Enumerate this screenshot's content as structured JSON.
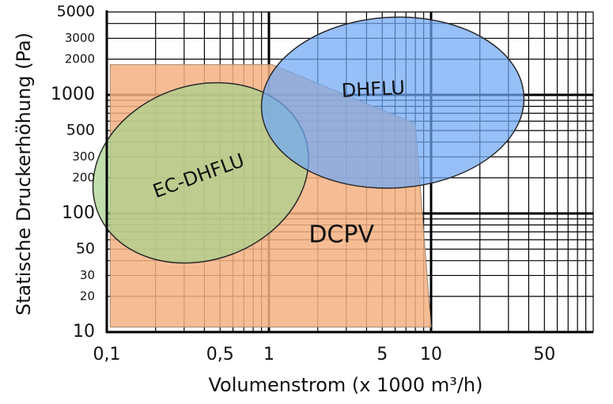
{
  "chart_data": {
    "type": "area",
    "title": "",
    "xlabel": "Volumenstrom (x 1000 m³/h)",
    "ylabel": "Statische Druckerhöhung (Pa)",
    "x_scale": "log",
    "y_scale": "log",
    "xlim": [
      0.1,
      100
    ],
    "ylim": [
      10,
      5000
    ],
    "x_major_ticks": [
      0.1,
      1,
      10
    ],
    "y_major_ticks": [
      10,
      100,
      1000
    ],
    "x_ticks": [
      {
        "value": 0.1,
        "label": "0,1"
      },
      {
        "value": 0.5,
        "label": "0,5"
      },
      {
        "value": 1,
        "label": "1"
      },
      {
        "value": 5,
        "label": "5"
      },
      {
        "value": 10,
        "label": "10"
      },
      {
        "value": 50,
        "label": "50"
      }
    ],
    "y_ticks": [
      {
        "value": 10,
        "label": "10",
        "size": "large"
      },
      {
        "value": 20,
        "label": "20",
        "size": "small"
      },
      {
        "value": 30,
        "label": "30",
        "size": "small"
      },
      {
        "value": 50,
        "label": "50",
        "size": "medium"
      },
      {
        "value": 100,
        "label": "100",
        "size": "large"
      },
      {
        "value": 200,
        "label": "200",
        "size": "small"
      },
      {
        "value": 300,
        "label": "300",
        "size": "small"
      },
      {
        "value": 500,
        "label": "500",
        "size": "medium"
      },
      {
        "value": 1000,
        "label": "1000",
        "size": "large"
      },
      {
        "value": 2000,
        "label": "2000",
        "size": "small"
      },
      {
        "value": 3000,
        "label": "3000",
        "size": "small"
      },
      {
        "value": 5000,
        "label": "5000",
        "size": "medium"
      }
    ],
    "grid": true,
    "regions": [
      {
        "name": "DCPV",
        "shape": "polygon",
        "color": "#F5B183",
        "points": [
          {
            "x": 0.105,
            "y": 1800
          },
          {
            "x": 1.05,
            "y": 1800
          },
          {
            "x": 1.6,
            "y": 1420
          },
          {
            "x": 8.0,
            "y": 570
          },
          {
            "x": 10.0,
            "y": 11
          },
          {
            "x": 0.105,
            "y": 11
          }
        ],
        "label_at": {
          "x": 2.8,
          "y": 65
        }
      },
      {
        "name": "EC-DHFLU",
        "shape": "ellipse",
        "color": "#A9D18E",
        "center": {
          "x": 0.38,
          "y": 220
        },
        "semi_axes_decades": {
          "x": 0.68,
          "y": 0.735
        },
        "rotation_deg": -20,
        "label_at": {
          "x": 0.37,
          "y": 205
        }
      },
      {
        "name": "DHFLU",
        "shape": "ellipse",
        "color": "#6FA8F5",
        "center": {
          "x": 5.8,
          "y": 860
        },
        "semi_axes_decades": {
          "x": 0.81,
          "y": 0.72
        },
        "rotation_deg": -3,
        "label_at": {
          "x": 4.4,
          "y": 1100
        }
      }
    ]
  }
}
